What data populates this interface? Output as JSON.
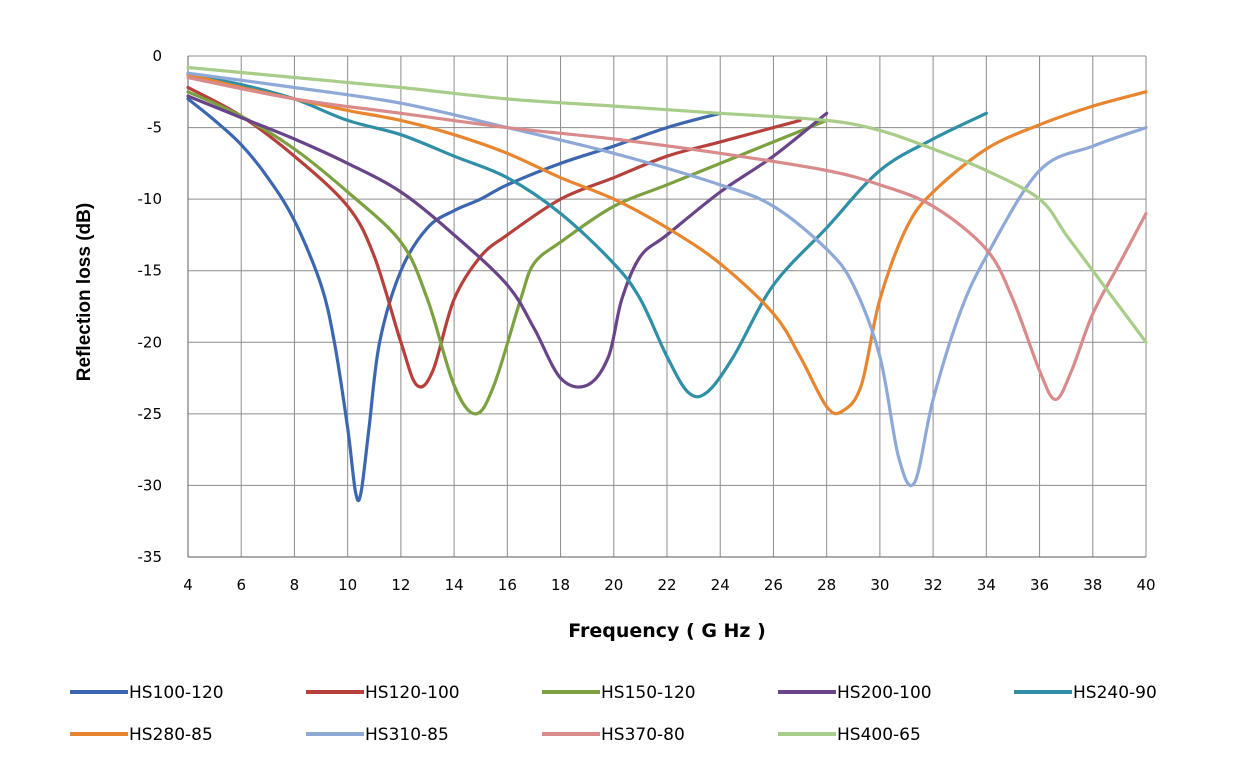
{
  "chart_data": {
    "type": "line",
    "title": "",
    "xlabel": "Frequency ( G Hz )",
    "ylabel": "Reflection loss (dB)",
    "xlim": [
      4,
      40
    ],
    "ylim": [
      -35,
      0
    ],
    "x_ticks": [
      4,
      6,
      8,
      10,
      12,
      14,
      16,
      18,
      20,
      22,
      24,
      26,
      28,
      30,
      32,
      34,
      36,
      38,
      40
    ],
    "y_ticks": [
      0,
      -5,
      -10,
      -15,
      -20,
      -25,
      -30,
      -35
    ],
    "grid": true,
    "legend_position": "bottom",
    "series": [
      {
        "name": "HS100-120",
        "color": "#3C67B0",
        "x": [
          4,
          5,
          6,
          7,
          8,
          9,
          9.5,
          10,
          10.3,
          10.5,
          10.8,
          11.2,
          12,
          13,
          14,
          15,
          16,
          18,
          20,
          22,
          24
        ],
        "y": [
          -3,
          -4.5,
          -6.2,
          -8.5,
          -11.5,
          -16,
          -20,
          -26,
          -30.5,
          -30.5,
          -26,
          -20,
          -15,
          -12,
          -10.8,
          -10,
          -9,
          -7.5,
          -6.3,
          -5,
          -4
        ]
      },
      {
        "name": "HS120-100",
        "color": "#B5403C",
        "x": [
          4,
          6,
          8,
          10,
          11,
          12,
          12.6,
          13.2,
          14,
          15,
          16,
          18,
          20,
          22,
          24,
          27
        ],
        "y": [
          -2.2,
          -4.2,
          -7,
          -10.5,
          -14,
          -20,
          -23,
          -22,
          -17,
          -14,
          -12.5,
          -10,
          -8.5,
          -7,
          -6,
          -4.5
        ]
      },
      {
        "name": "HS150-120",
        "color": "#7CA140",
        "x": [
          4,
          6,
          8,
          10,
          12,
          13,
          14,
          14.8,
          15.5,
          16.5,
          17,
          18,
          20,
          22,
          24,
          26,
          28
        ],
        "y": [
          -2.5,
          -4.2,
          -6.5,
          -9.5,
          -13,
          -17,
          -23,
          -25,
          -23,
          -17,
          -14.5,
          -13,
          -10.5,
          -9,
          -7.5,
          -6,
          -4.5
        ]
      },
      {
        "name": "HS200-100",
        "color": "#6A4489",
        "x": [
          4,
          6,
          8,
          10,
          12,
          14,
          16,
          17,
          18,
          19,
          19.8,
          20.3,
          21,
          22,
          24,
          26,
          28
        ],
        "y": [
          -2.8,
          -4.3,
          -5.8,
          -7.5,
          -9.5,
          -12.5,
          -16,
          -19,
          -22.5,
          -23,
          -21,
          -17,
          -14,
          -12.5,
          -9.5,
          -7,
          -4
        ]
      },
      {
        "name": "HS240-90",
        "color": "#2E8FA6",
        "x": [
          4,
          6,
          8,
          10,
          12,
          14,
          16,
          18,
          20,
          21,
          22,
          22.8,
          23.5,
          24.5,
          26,
          28,
          30,
          32,
          34
        ],
        "y": [
          -1.3,
          -2,
          -3,
          -4.5,
          -5.5,
          -7,
          -8.5,
          -11,
          -14.5,
          -17,
          -21,
          -23.5,
          -23.5,
          -21,
          -16,
          -12,
          -8,
          -5.8,
          -4
        ]
      },
      {
        "name": "HS280-85",
        "color": "#E88630",
        "x": [
          4,
          6,
          8,
          10,
          12,
          14,
          16,
          18,
          20,
          22,
          24,
          26,
          27,
          28,
          28.6,
          29.3,
          30,
          31,
          32,
          34,
          36,
          38,
          40
        ],
        "y": [
          -1.3,
          -2.2,
          -3,
          -3.8,
          -4.5,
          -5.5,
          -6.8,
          -8.5,
          -10,
          -12,
          -14.5,
          -18,
          -21,
          -24.5,
          -24.8,
          -23,
          -17,
          -12,
          -9.5,
          -6.5,
          -4.8,
          -3.5,
          -2.5
        ]
      },
      {
        "name": "HS310-85",
        "color": "#8EA9D8",
        "x": [
          4,
          8,
          12,
          16,
          20,
          24,
          26,
          28,
          29,
          30,
          30.7,
          31.3,
          32,
          33,
          34,
          36,
          38,
          40
        ],
        "y": [
          -1.2,
          -2.2,
          -3.3,
          -5,
          -6.8,
          -9,
          -10.5,
          -13.5,
          -16,
          -21,
          -28,
          -29.8,
          -24,
          -18,
          -14,
          -8,
          -6.3,
          -5
        ]
      },
      {
        "name": "HS370-80",
        "color": "#D98A8A",
        "x": [
          4,
          8,
          12,
          16,
          20,
          24,
          28,
          30,
          32,
          34,
          35,
          36,
          36.6,
          37.2,
          38,
          39,
          40
        ],
        "y": [
          -1.5,
          -3,
          -4,
          -5,
          -5.8,
          -6.8,
          -8,
          -9,
          -10.5,
          -13.5,
          -17,
          -22,
          -24,
          -22,
          -18,
          -14.5,
          -11
        ]
      },
      {
        "name": "HS400-65",
        "color": "#A8CD88",
        "x": [
          4,
          8,
          12,
          16,
          20,
          24,
          28,
          30,
          32,
          34,
          36,
          37,
          38,
          39,
          40
        ],
        "y": [
          -0.8,
          -1.5,
          -2.2,
          -3,
          -3.5,
          -4,
          -4.5,
          -5.2,
          -6.5,
          -8,
          -10,
          -12.5,
          -15,
          -17.5,
          -20
        ]
      }
    ]
  }
}
